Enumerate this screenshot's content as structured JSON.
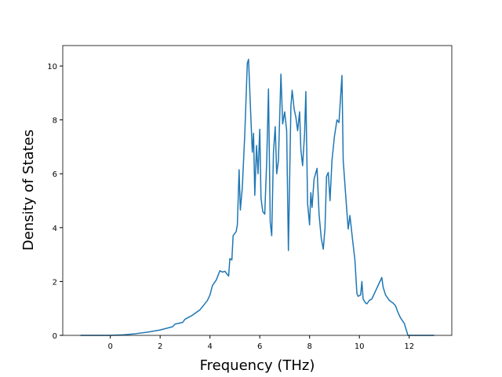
{
  "chart_data": {
    "type": "line",
    "xlabel": "Frequency (THz)",
    "ylabel": "Density of States",
    "x": [
      -1.2,
      0,
      0.5,
      1,
      1.5,
      2,
      2.5,
      2.6,
      2.9,
      3,
      3.3,
      3.6,
      3.9,
      4.0,
      4.1,
      4.25,
      4.4,
      4.5,
      4.6,
      4.75,
      4.8,
      4.88,
      4.93,
      5.05,
      5.1,
      5.17,
      5.22,
      5.3,
      5.4,
      5.5,
      5.55,
      5.62,
      5.7,
      5.75,
      5.8,
      5.87,
      5.93,
      6.0,
      6.05,
      6.12,
      6.2,
      6.28,
      6.35,
      6.42,
      6.48,
      6.55,
      6.62,
      6.68,
      6.75,
      6.85,
      6.92,
      7.0,
      7.08,
      7.15,
      7.25,
      7.3,
      7.38,
      7.45,
      7.52,
      7.6,
      7.65,
      7.72,
      7.8,
      7.85,
      7.92,
      8.0,
      8.05,
      8.1,
      8.18,
      8.3,
      8.38,
      8.47,
      8.55,
      8.62,
      8.68,
      8.75,
      8.82,
      8.9,
      9.0,
      9.1,
      9.18,
      9.3,
      9.35,
      9.45,
      9.55,
      9.62,
      9.72,
      9.82,
      9.9,
      9.95,
      10.05,
      10.1,
      10.15,
      10.25,
      10.3,
      10.4,
      10.5,
      10.6,
      10.7,
      10.8,
      10.9,
      10.95,
      11.05,
      11.2,
      11.35,
      11.45,
      11.55,
      11.65,
      11.8,
      11.9,
      11.95,
      12.5,
      13.0
    ],
    "series": [
      {
        "color": "#1f77b4",
        "values": [
          0,
          0,
          0.02,
          0.06,
          0.12,
          0.2,
          0.32,
          0.42,
          0.48,
          0.6,
          0.75,
          0.95,
          1.3,
          1.5,
          1.85,
          2.05,
          2.4,
          2.35,
          2.38,
          2.2,
          2.85,
          2.8,
          3.7,
          3.85,
          4.1,
          6.15,
          4.65,
          5.5,
          7.5,
          10.1,
          10.25,
          8.6,
          6.8,
          7.5,
          5.2,
          7.05,
          6.0,
          7.65,
          5.1,
          4.6,
          4.5,
          6.5,
          9.15,
          4.2,
          3.7,
          6.8,
          7.75,
          6.0,
          6.5,
          9.7,
          7.85,
          8.3,
          7.6,
          3.15,
          8.5,
          9.1,
          8.4,
          8.1,
          7.6,
          8.3,
          6.9,
          6.3,
          7.5,
          9.05,
          4.9,
          4.1,
          5.3,
          4.75,
          5.8,
          6.2,
          4.5,
          3.6,
          3.2,
          4.0,
          5.9,
          6.05,
          5.0,
          6.5,
          7.4,
          8.0,
          7.9,
          9.65,
          6.5,
          5.2,
          3.95,
          4.45,
          3.6,
          2.8,
          1.55,
          1.45,
          1.5,
          2.0,
          1.35,
          1.2,
          1.17,
          1.3,
          1.35,
          1.55,
          1.75,
          1.95,
          2.15,
          1.8,
          1.5,
          1.3,
          1.2,
          1.1,
          0.85,
          0.65,
          0.45,
          0.15,
          0,
          0,
          0
        ]
      }
    ],
    "xlim": [
      -1.91,
      13.71
    ],
    "ylim": [
      0,
      10.76
    ],
    "xticks": [
      0,
      2,
      4,
      6,
      8,
      10,
      12
    ],
    "yticks": [
      0,
      2,
      4,
      6,
      8,
      10
    ]
  }
}
